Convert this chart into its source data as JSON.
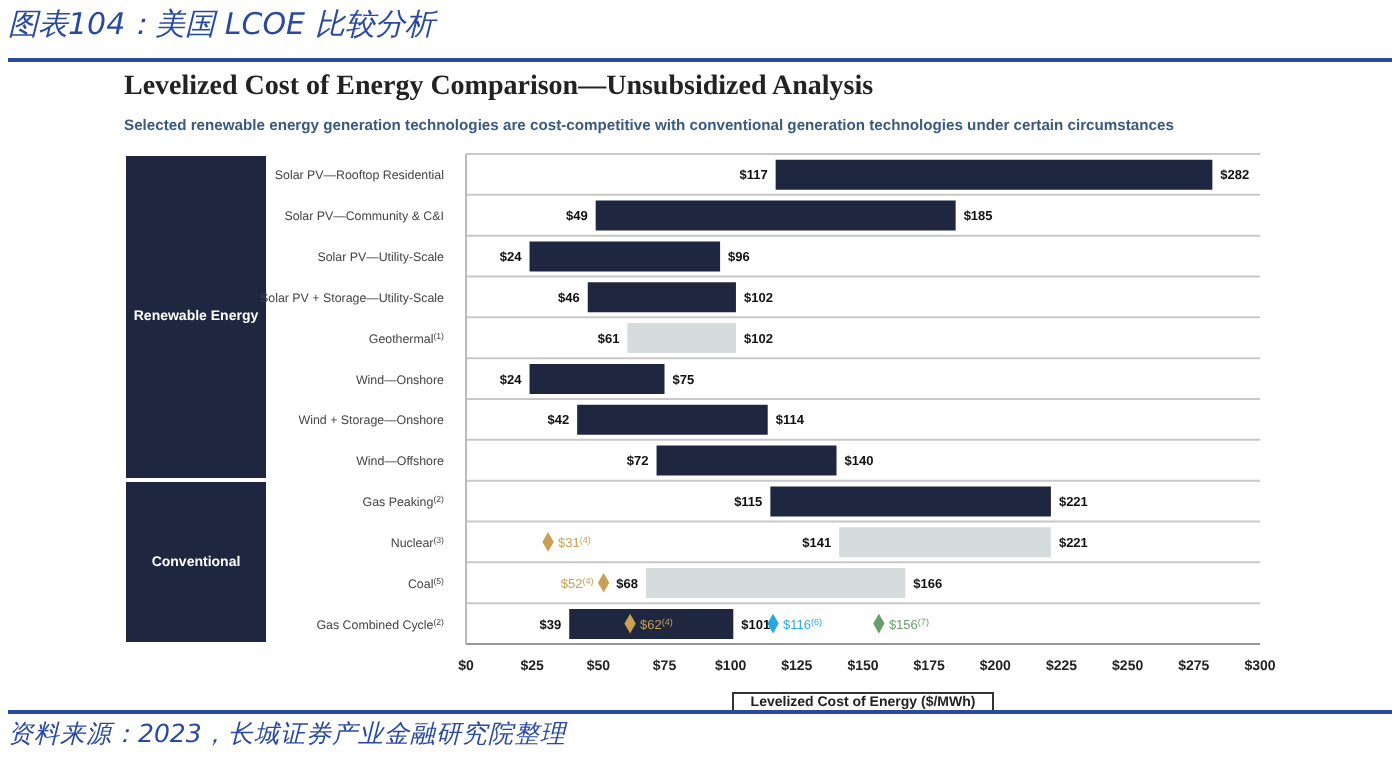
{
  "chart_data": {
    "type": "bar",
    "orientation": "horizontal",
    "title": "图表104：美国 LCOE 比较分析",
    "subtitle": "Levelized Cost of Energy Comparison—Unsubsidized Analysis",
    "xlabel": "Levelized Cost of Energy ($/MWh)",
    "categories": [
      "Solar PV—Rooftop Residential",
      "Solar PV—Community & C&I",
      "Solar PV—Utility-Scale",
      "Solar PV + Storage—Utility-Scale",
      "Geothermal$^{(1)}$",
      "Wind—Onshore",
      "Wind + Storage—Onshore",
      "Wind—Offshore",
      "Gas Peaking$^{(2)}$",
      "Nuclear$^{(3)}$",
      "Coal$^{(5)}$",
      "Gas Combined Cycle$^{(2)}$"
    ],
    "series": [
      {
        "base": [
          117,
          49,
          24,
          46,
          61,
          24,
          42,
          72,
          115,
          141,
          68,
          39
        ],
        "colors": [
          "#1f2640",
          "#1f2640",
          "#1f2640",
          "#1f2640",
          "#d6dbdb",
          "#1f2640",
          "#1f2640",
          "#1f2640",
          "#1f2640",
          "#d6dbdb",
          "#d6dbdb",
          "#1f2640"
        ],
        "values": [
          165,
          136,
          72,
          56,
          41,
          51,
          72,
          68,
          106,
          80,
          98,
          62
        ]
      },
      {
        "type": "scatter",
        "marker": "diamond",
        "color": "#c9a055",
        "values": [
          null,
          null,
          null,
          null,
          null,
          null,
          null,
          null,
          null,
          31,
          52,
          62
        ],
        "value_labels": [
          null,
          null,
          null,
          null,
          null,
          null,
          null,
          null,
          null,
          "$31$^{(4)}$",
          "$52$^{(4)}$",
          "$62$^{(4)}$"
        ]
      },
      {
        "type": "scatter",
        "marker": "diamond",
        "color": "#29a8e0",
        "values": [
          null,
          null,
          null,
          null,
          null,
          null,
          null,
          null,
          null,
          null,
          null,
          116
        ],
        "value_labels": [
          null,
          null,
          null,
          null,
          null,
          null,
          null,
          null,
          null,
          null,
          null,
          "$116$^{(6)}$"
        ]
      },
      {
        "type": "scatter",
        "marker": "diamond",
        "color": "#6a9e6a",
        "values": [
          null,
          null,
          null,
          null,
          null,
          null,
          null,
          null,
          null,
          null,
          null,
          156
        ],
        "value_labels": [
          null,
          null,
          null,
          null,
          null,
          null,
          null,
          null,
          null,
          null,
          null,
          "$156$^{(7)}$"
        ]
      }
    ],
    "xlim": [
      0,
      300
    ],
    "xticks": [
      {
        "value": 0,
        "label": "$0"
      },
      {
        "value": 25,
        "label": "$25"
      },
      {
        "value": 50,
        "label": "$50"
      },
      {
        "value": 75,
        "label": "$75"
      },
      {
        "value": 100,
        "label": "$100"
      },
      {
        "value": 125,
        "label": "$125"
      },
      {
        "value": 150,
        "label": "$150"
      },
      {
        "value": 175,
        "label": "$175"
      },
      {
        "value": 200,
        "label": "$200"
      },
      {
        "value": 225,
        "label": "$225"
      },
      {
        "value": 250,
        "label": "$250"
      },
      {
        "value": 275,
        "label": "$275"
      },
      {
        "value": 300,
        "label": "$300"
      }
    ],
    "grid": "y",
    "annotations": [
      "Selected renewable energy generation technologies are cost-competitive with conventional generation technologies under certain circumstances",
      "Renewable Energy",
      "Conventional",
      "资料来源：2023，长城证券产业金融研究院整理",
      {
        "text": "$117",
        "x": 117,
        "y": "Solar PV—Rooftop Residential"
      },
      {
        "text": "$49",
        "x": 49,
        "y": "Solar PV—Community & C&I"
      },
      {
        "text": "$24",
        "x": 24,
        "y": "Solar PV—Utility-Scale"
      },
      {
        "text": "$46",
        "x": 46,
        "y": "Solar PV + Storage—Utility-Scale"
      },
      {
        "text": "$61",
        "x": 61,
        "y": "Geothermal$^{(1)}$"
      },
      {
        "text": "$24",
        "x": 24,
        "y": "Wind—Onshore"
      },
      {
        "text": "$42",
        "x": 42,
        "y": "Wind + Storage—Onshore"
      },
      {
        "text": "$72",
        "x": 72,
        "y": "Wind—Offshore"
      },
      {
        "text": "$115",
        "x": 115,
        "y": "Gas Peaking$^{(2)}$"
      },
      {
        "text": "$141",
        "x": 141,
        "y": "Nuclear$^{(3)}$"
      },
      {
        "text": "$68",
        "x": 68,
        "y": "Coal$^{(5)}$"
      },
      {
        "text": "$39",
        "x": 39,
        "y": "Gas Combined Cycle$^{(2)}$"
      },
      {
        "text": "$282",
        "x": 282,
        "y": "Solar PV—Rooftop Residential"
      },
      {
        "text": "$185",
        "x": 185,
        "y": "Solar PV—Community & C&I"
      },
      {
        "text": "$96",
        "x": 96,
        "y": "Solar PV—Utility-Scale"
      },
      {
        "text": "$102",
        "x": 102,
        "y": "Solar PV + Storage—Utility-Scale"
      },
      {
        "text": "$102",
        "x": 102,
        "y": "Geothermal$^{(1)}$"
      },
      {
        "text": "$75",
        "x": 75,
        "y": "Wind—Onshore"
      },
      {
        "text": "$114",
        "x": 114,
        "y": "Wind + Storage—Onshore"
      },
      {
        "text": "$140",
        "x": 140,
        "y": "Wind—Offshore"
      },
      {
        "text": "$221",
        "x": 221,
        "y": "Gas Peaking$^{(2)}$"
      },
      {
        "text": "$221",
        "x": 221,
        "y": "Nuclear$^{(3)}$"
      },
      {
        "text": "$166",
        "x": 166,
        "y": "Coal$^{(5)}$"
      },
      {
        "text": "$101",
        "x": 101,
        "y": "Gas Combined Cycle$^{(2)}$"
      }
    ]
  }
}
